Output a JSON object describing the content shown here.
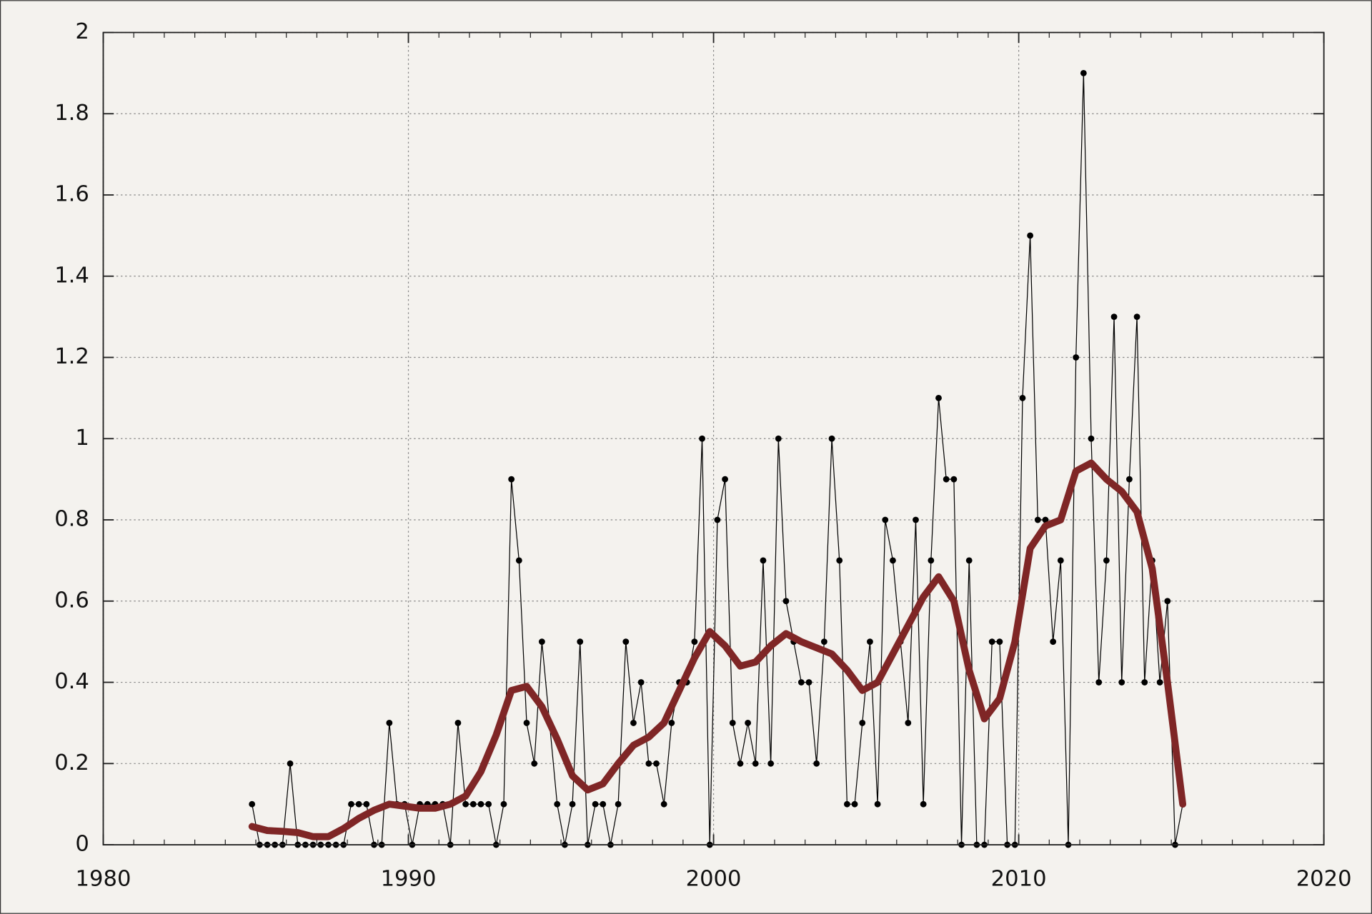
{
  "chart_data": {
    "type": "line",
    "xlim": [
      1980,
      2020
    ],
    "xticks": [
      1980,
      1990,
      2000,
      2010,
      2020
    ],
    "ylim": [
      0,
      2
    ],
    "yticks": [
      0,
      0.2,
      0.4,
      0.6,
      0.8,
      1,
      1.2,
      1.4,
      1.6,
      1.8,
      2
    ],
    "grid": true,
    "series": [
      {
        "color": "#000000",
        "markers": true,
        "width": 1,
        "x": [
          1984.875,
          1985.125,
          1985.375,
          1985.625,
          1985.875,
          1986.125,
          1986.375,
          1986.625,
          1986.875,
          1987.125,
          1987.375,
          1987.625,
          1987.875,
          1988.125,
          1988.375,
          1988.625,
          1988.875,
          1989.125,
          1989.375,
          1989.625,
          1989.875,
          1990.125,
          1990.375,
          1990.625,
          1990.875,
          1991.125,
          1991.375,
          1991.625,
          1991.875,
          1992.125,
          1992.375,
          1992.625,
          1992.875,
          1993.125,
          1993.375,
          1993.625,
          1993.875,
          1994.125,
          1994.375,
          1994.625,
          1994.875,
          1995.125,
          1995.375,
          1995.625,
          1995.875,
          1996.125,
          1996.375,
          1996.625,
          1996.875,
          1997.125,
          1997.375,
          1997.625,
          1997.875,
          1998.125,
          1998.375,
          1998.625,
          1998.875,
          1999.125,
          1999.375,
          1999.625,
          1999.875,
          2000.125,
          2000.375,
          2000.625,
          2000.875,
          2001.125,
          2001.375,
          2001.625,
          2001.875,
          2002.125,
          2002.375,
          2002.625,
          2002.875,
          2003.125,
          2003.375,
          2003.625,
          2003.875,
          2004.125,
          2004.375,
          2004.625,
          2004.875,
          2005.125,
          2005.375,
          2005.625,
          2005.875,
          2006.125,
          2006.375,
          2006.625,
          2006.875,
          2007.125,
          2007.375,
          2007.625,
          2007.875,
          2008.125,
          2008.375,
          2008.625,
          2008.875,
          2009.125,
          2009.375,
          2009.625,
          2009.875,
          2010.125,
          2010.375,
          2010.625,
          2010.875,
          2011.125,
          2011.375,
          2011.625,
          2011.875,
          2012.125,
          2012.375,
          2012.625,
          2012.875,
          2013.125,
          2013.375,
          2013.625,
          2013.875,
          2014.125,
          2014.375,
          2014.625,
          2014.875,
          2015.125,
          2015.375
        ],
        "values": [
          0.1,
          0,
          0,
          0,
          0,
          0.2,
          0,
          0,
          0,
          0,
          0,
          0,
          0,
          0.1,
          0.1,
          0.1,
          0,
          0,
          0.3,
          0.1,
          0.1,
          0,
          0.1,
          0.1,
          0.1,
          0.1,
          0,
          0.3,
          0.1,
          0.1,
          0.1,
          0.1,
          0,
          0.1,
          0.9,
          0.7,
          0.3,
          0.2,
          0.5,
          0.3,
          0.1,
          0,
          0.1,
          0.5,
          0,
          0.1,
          0.1,
          0,
          0.1,
          0.5,
          0.3,
          0.4,
          0.2,
          0.2,
          0.1,
          0.3,
          0.4,
          0.4,
          0.5,
          1,
          0,
          0.8,
          0.9,
          0.3,
          0.2,
          0.3,
          0.2,
          0.7,
          0.2,
          1,
          0.6,
          0.5,
          0.4,
          0.4,
          0.2,
          0.5,
          1,
          0.7,
          0.1,
          0.1,
          0.3,
          0.5,
          0.1,
          0.8,
          0.7,
          0.5,
          0.3,
          0.8,
          0.1,
          0.7,
          1.1,
          0.9,
          0.9,
          0,
          0.7,
          0,
          0,
          0.5,
          0.5,
          0,
          0,
          1.1,
          1.5,
          0.8,
          0.8,
          0.5,
          0.7,
          0,
          1.2,
          1.9,
          1,
          0.4,
          0.7,
          1.3,
          0.4,
          0.9,
          1.3,
          0.4,
          0.7,
          0.4,
          0.6,
          0,
          0.1
        ]
      },
      {
        "color": "#7f2626",
        "markers": false,
        "width": 8,
        "x": [
          1984.875,
          1985.375,
          1985.875,
          1986.375,
          1986.875,
          1987.375,
          1987.875,
          1988.375,
          1988.875,
          1989.375,
          1989.875,
          1990.375,
          1990.875,
          1991.375,
          1991.875,
          1992.375,
          1992.875,
          1993.375,
          1993.875,
          1994.375,
          1994.875,
          1995.375,
          1995.875,
          1996.375,
          1996.875,
          1997.375,
          1997.875,
          1998.375,
          1998.875,
          1999.375,
          1999.875,
          2000.375,
          2000.875,
          2001.375,
          2001.875,
          2002.375,
          2002.875,
          2003.375,
          2003.875,
          2004.375,
          2004.875,
          2005.375,
          2005.875,
          2006.375,
          2006.875,
          2007.375,
          2007.875,
          2008.375,
          2008.875,
          2009.375,
          2009.875,
          2010.375,
          2010.875,
          2011.375,
          2011.875,
          2012.375,
          2012.875,
          2013.375,
          2013.875,
          2014.375,
          2014.875,
          2015.375
        ],
        "values": [
          0.045,
          0.035,
          0.033,
          0.03,
          0.02,
          0.02,
          0.04,
          0.065,
          0.085,
          0.1,
          0.095,
          0.09,
          0.09,
          0.1,
          0.12,
          0.18,
          0.27,
          0.38,
          0.39,
          0.34,
          0.26,
          0.17,
          0.135,
          0.15,
          0.2,
          0.245,
          0.265,
          0.3,
          0.38,
          0.46,
          0.525,
          0.49,
          0.44,
          0.45,
          0.49,
          0.52,
          0.5,
          0.485,
          0.47,
          0.43,
          0.38,
          0.4,
          0.47,
          0.54,
          0.61,
          0.66,
          0.6,
          0.43,
          0.31,
          0.36,
          0.5,
          0.73,
          0.785,
          0.8,
          0.92,
          0.94,
          0.9,
          0.87,
          0.82,
          0.68,
          0.4,
          0.1
        ]
      }
    ]
  }
}
